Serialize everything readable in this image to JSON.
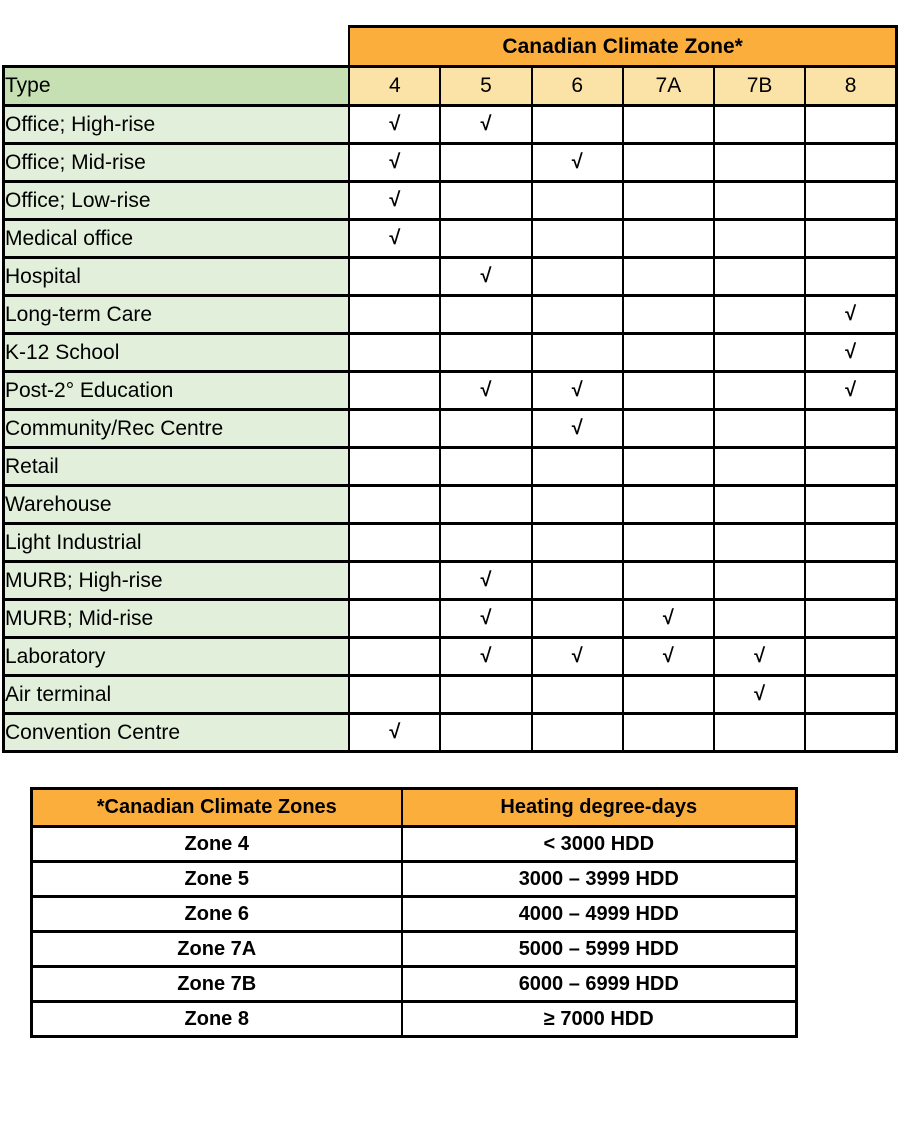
{
  "matrix_table": {
    "banner": "Canadian Climate Zone*",
    "type_header": "Type",
    "zones": [
      "4",
      "5",
      "6",
      "7A",
      "7B",
      "8"
    ],
    "check_glyph": "√",
    "rows": [
      {
        "label": "Office; High-rise",
        "checks": [
          true,
          true,
          false,
          false,
          false,
          false
        ]
      },
      {
        "label": "Office; Mid-rise",
        "checks": [
          true,
          false,
          true,
          false,
          false,
          false
        ]
      },
      {
        "label": "Office; Low-rise",
        "checks": [
          true,
          false,
          false,
          false,
          false,
          false
        ]
      },
      {
        "label": "Medical office",
        "checks": [
          true,
          false,
          false,
          false,
          false,
          false
        ]
      },
      {
        "label": "Hospital",
        "checks": [
          false,
          true,
          false,
          false,
          false,
          false
        ]
      },
      {
        "label": "Long-term Care",
        "checks": [
          false,
          false,
          false,
          false,
          false,
          true
        ]
      },
      {
        "label": "K-12 School",
        "checks": [
          false,
          false,
          false,
          false,
          false,
          true
        ]
      },
      {
        "label": "Post-2° Education",
        "checks": [
          false,
          true,
          true,
          false,
          false,
          true
        ]
      },
      {
        "label": "Community/Rec Centre",
        "checks": [
          false,
          false,
          true,
          false,
          false,
          false
        ]
      },
      {
        "label": "Retail",
        "checks": [
          false,
          false,
          false,
          false,
          false,
          false
        ]
      },
      {
        "label": "Warehouse",
        "checks": [
          false,
          false,
          false,
          false,
          false,
          false
        ]
      },
      {
        "label": "Light Industrial",
        "checks": [
          false,
          false,
          false,
          false,
          false,
          false
        ]
      },
      {
        "label": "MURB; High-rise",
        "checks": [
          false,
          true,
          false,
          false,
          false,
          false
        ]
      },
      {
        "label": "MURB; Mid-rise",
        "checks": [
          false,
          true,
          false,
          true,
          false,
          false
        ]
      },
      {
        "label": "Laboratory",
        "checks": [
          false,
          true,
          true,
          true,
          true,
          false
        ]
      },
      {
        "label": "Air terminal",
        "checks": [
          false,
          false,
          false,
          false,
          true,
          false
        ]
      },
      {
        "label": "Convention Centre",
        "checks": [
          true,
          false,
          false,
          false,
          false,
          false
        ]
      }
    ]
  },
  "legend_table": {
    "zone_header": "*Canadian Climate Zones",
    "hdd_header": "Heating degree-days",
    "rows": [
      {
        "zone": "Zone 4",
        "hdd": "< 3000 HDD"
      },
      {
        "zone": "Zone 5",
        "hdd": "3000 – 3999 HDD"
      },
      {
        "zone": "Zone 6",
        "hdd": "4000 – 4999 HDD"
      },
      {
        "zone": "Zone 7A",
        "hdd": "5000 – 5999 HDD"
      },
      {
        "zone": "Zone 7B",
        "hdd": "6000 – 6999 HDD"
      },
      {
        "zone": "Zone 8",
        "hdd": "≥ 7000 HDD"
      }
    ]
  },
  "colors": {
    "banner_orange": "#FBAE3C",
    "zone_header_tan": "#FBE2A6",
    "type_header_green": "#C6E0B4",
    "row_label_green": "#E2EFDA",
    "border_black": "#000000",
    "cell_white": "#FFFFFF"
  },
  "chart_data": {
    "type": "table",
    "title": "Canadian Climate Zone*",
    "columns": [
      "Type",
      "4",
      "5",
      "6",
      "7A",
      "7B",
      "8"
    ],
    "rows_checked_zones": {
      "Office; High-rise": [
        "4",
        "5"
      ],
      "Office; Mid-rise": [
        "4",
        "6"
      ],
      "Office; Low-rise": [
        "4"
      ],
      "Medical office": [
        "4"
      ],
      "Hospital": [
        "5"
      ],
      "Long-term Care": [
        "8"
      ],
      "K-12 School": [
        "8"
      ],
      "Post-2° Education": [
        "5",
        "6",
        "8"
      ],
      "Community/Rec Centre": [
        "6"
      ],
      "Retail": [],
      "Warehouse": [],
      "Light Industrial": [],
      "MURB; High-rise": [
        "5"
      ],
      "MURB; Mid-rise": [
        "5",
        "7A"
      ],
      "Laboratory": [
        "5",
        "6",
        "7A",
        "7B"
      ],
      "Air terminal": [
        "7B"
      ],
      "Convention Centre": [
        "4"
      ]
    }
  }
}
